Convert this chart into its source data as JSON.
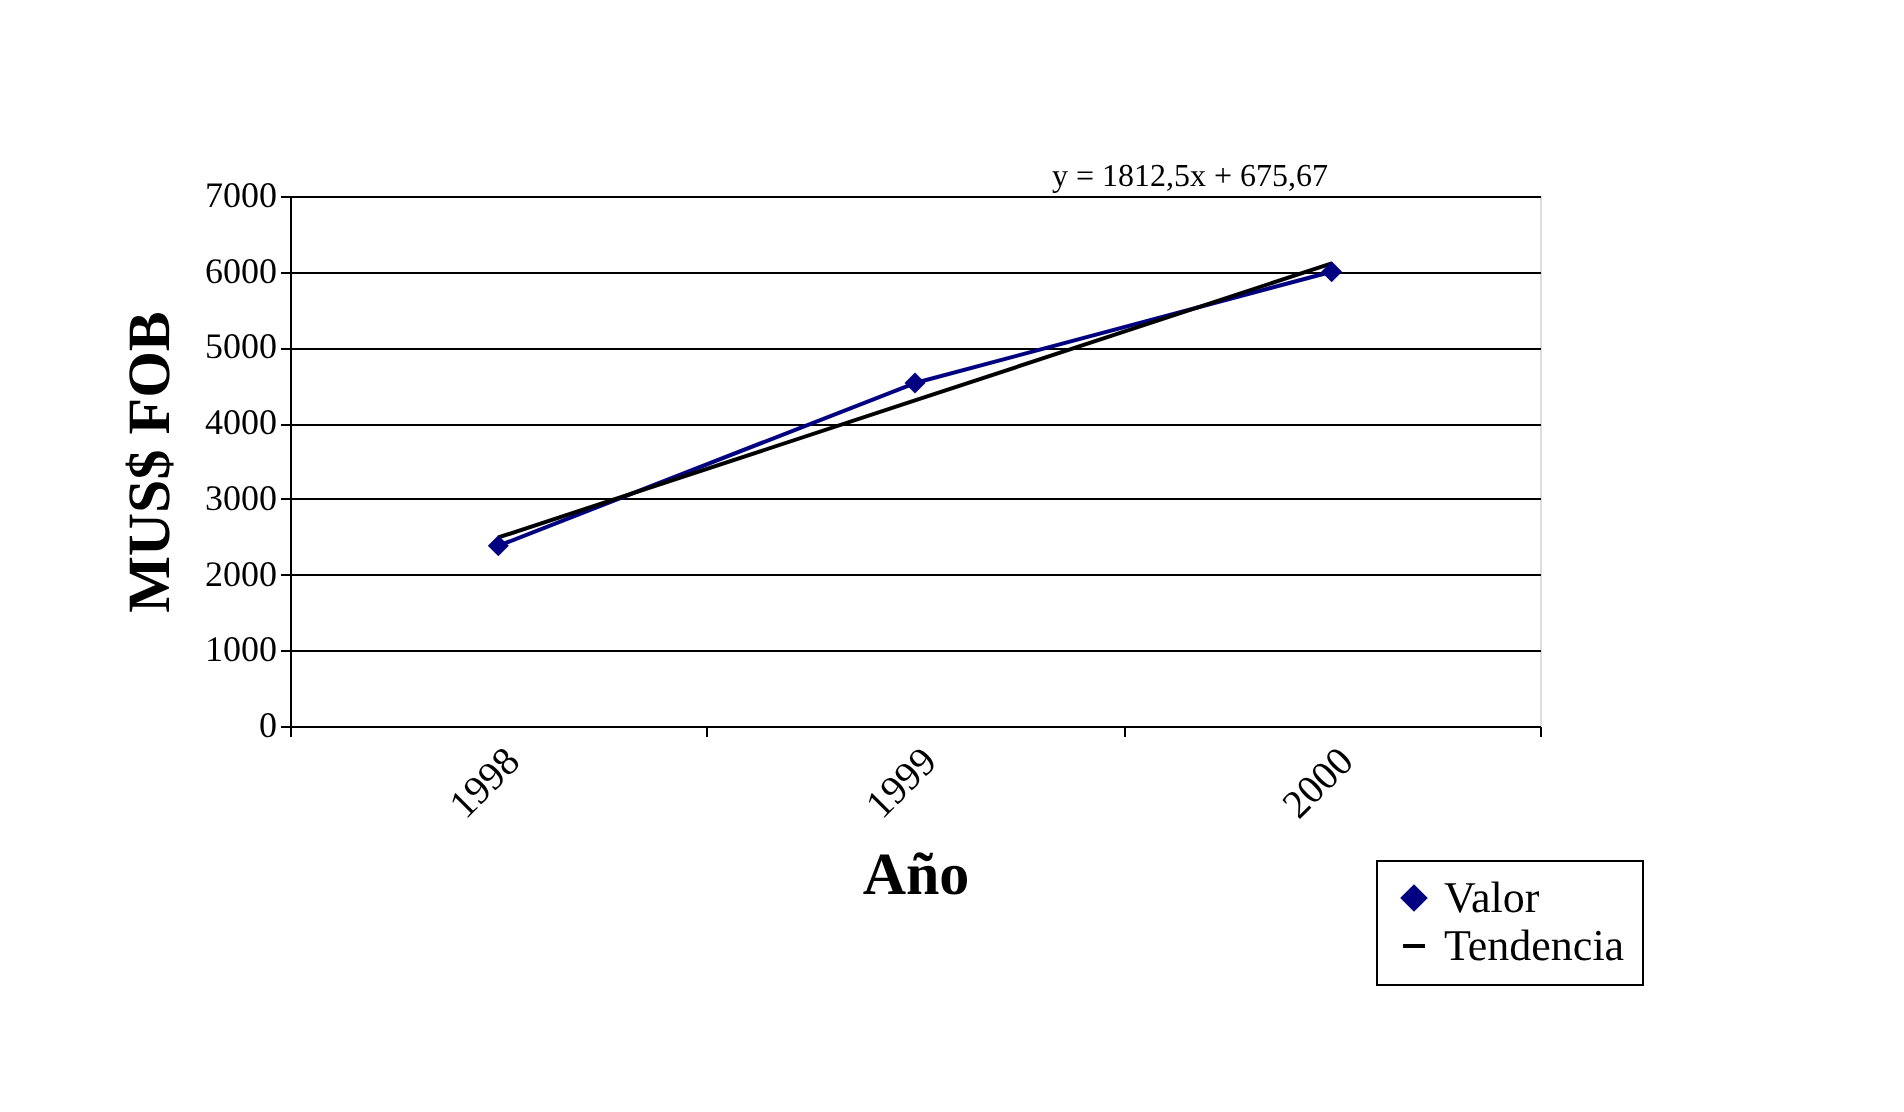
{
  "chart_data": {
    "type": "line",
    "xlabel": "Año",
    "ylabel": "MUS$ FOB",
    "categories": [
      "1998",
      "1999",
      "2000"
    ],
    "series": [
      {
        "name": "Valor",
        "color": "#000080",
        "values": [
          2380,
          4530,
          6000
        ],
        "marker": "diamond"
      },
      {
        "name": "Tendencia",
        "color": "#000000",
        "values": [
          2490,
          4300,
          6110
        ],
        "marker": "none"
      }
    ],
    "ylim": [
      0,
      7000
    ],
    "yticks": [
      0,
      1000,
      2000,
      3000,
      4000,
      5000,
      6000,
      7000
    ],
    "grid": "y",
    "legend": "bottom right",
    "annotations": [
      "y = 1812,5x + 675,67"
    ]
  }
}
